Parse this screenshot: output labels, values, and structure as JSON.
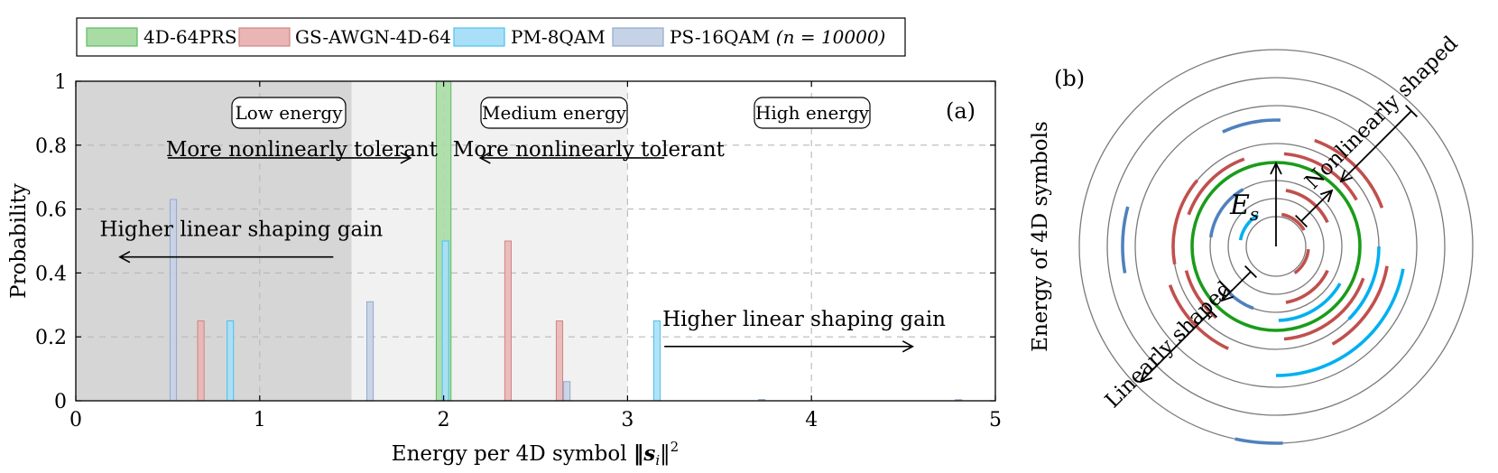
{
  "legend": [
    {
      "key": "4d64prs",
      "label": "4D-64PRS",
      "color": "#4caf50",
      "fill": "#a8dca4",
      "stroke": "#5dbb62"
    },
    {
      "key": "gsawgn",
      "label": "GS-AWGN-4D-64",
      "color": "#c0504d",
      "fill": "#e9b6b5",
      "stroke": "#cf8583"
    },
    {
      "key": "pm8qam",
      "label": "PM-8QAM",
      "color": "#00b0f0",
      "fill": "#a9e0f7",
      "stroke": "#49c1ee"
    },
    {
      "key": "ps16qam",
      "label": "PS-16QAM",
      "label_math": "(n = 10000)",
      "color": "#4f81bd",
      "fill": "#c6d2e6",
      "stroke": "#92a8cf"
    }
  ],
  "chart_data": [
    {
      "type": "bar",
      "panel": "(a)",
      "xlabel": "Energy per 4D symbol",
      "xlabel_math": "‖s",
      "xlabel_math_sub": "i",
      "xlabel_math_tail": "‖",
      "xlabel_math_sup": "2",
      "ylabel": "Probability",
      "xlim": [
        0,
        5
      ],
      "ylim": [
        0,
        1
      ],
      "xticks": [
        "0",
        "1",
        "2",
        "3",
        "4",
        "5"
      ],
      "yticks": [
        "0",
        "0.2",
        "0.4",
        "0.6",
        "0.8",
        "1"
      ],
      "grid": "dashed",
      "regions": [
        {
          "label": "Low energy",
          "x0": 0,
          "x1": 1.5,
          "shade": "#d6d6d6"
        },
        {
          "label": "Medium energy",
          "x0": 1.5,
          "x1": 3,
          "shade": "#f1f1f1"
        },
        {
          "label": "High energy",
          "x0": 3,
          "x1": 5,
          "shade": "#ffffff"
        }
      ],
      "series": [
        {
          "name": "4D-64PRS",
          "x": [
            2.0
          ],
          "y": [
            1.0
          ],
          "width": 0.08
        },
        {
          "name": "GS-AWGN-4D-64",
          "x": [
            0.68,
            2.35,
            2.63
          ],
          "y": [
            0.25,
            0.5,
            0.25
          ],
          "width": 0.035
        },
        {
          "name": "PM-8QAM",
          "x": [
            0.84,
            2.01,
            3.16
          ],
          "y": [
            0.25,
            0.5,
            0.25
          ],
          "width": 0.035
        },
        {
          "name": "PS-16QAM",
          "x": [
            0.53,
            1.6,
            2.67,
            3.73,
            4.8
          ],
          "y": [
            0.63,
            0.31,
            0.06,
            0.004,
            0.001
          ],
          "width": 0.035
        }
      ],
      "annotations": [
        {
          "text": "More nonlinearly tolerant",
          "arrow_from": 0.5,
          "arrow_to": 1.82,
          "text_x": 0.49,
          "y": 0.76,
          "text_y": 0.765
        },
        {
          "text": "More nonlinearly tolerant",
          "arrow_from": 3.2,
          "arrow_to": 2.2,
          "text_x": 2.05,
          "y": 0.76,
          "text_y": 0.765
        },
        {
          "text": "Higher linear shaping gain",
          "arrow_from": 1.4,
          "arrow_to": 0.24,
          "text_x": 0.13,
          "y": 0.45,
          "text_y": 0.515
        },
        {
          "text": "Higher linear shaping gain",
          "arrow_from": 3.2,
          "arrow_to": 4.55,
          "text_x": 3.19,
          "y": 0.17,
          "text_y": 0.235
        }
      ]
    },
    {
      "type": "diagram",
      "panel": "(b)",
      "ylabel": "Energy of 4D symbols",
      "es_label": "E",
      "es_sub": "s",
      "labels": {
        "nonlinear": "Nonlinearly shaped",
        "linear": "Linearly shaped"
      }
    }
  ]
}
